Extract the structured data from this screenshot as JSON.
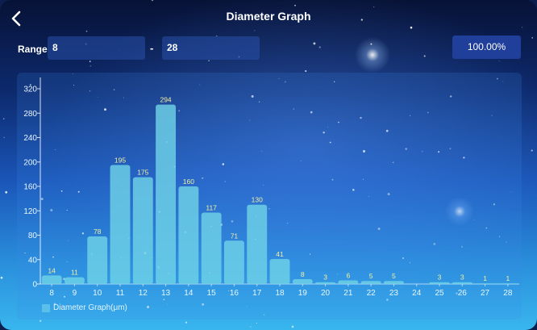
{
  "header": {
    "title": "Diameter Graph",
    "back_icon": "chevron-left-icon"
  },
  "range": {
    "label": "Range",
    "from_value": "8",
    "separator": "-",
    "to_value": "28"
  },
  "percent": "100.00%",
  "colors": {
    "bar_fill": "#6fd2e6",
    "bar_label": "#f4f0a0",
    "axis_text": "#e8f6ff"
  },
  "chart_data": {
    "type": "bar",
    "categories": [
      "8",
      "9",
      "10",
      "11",
      "12",
      "13",
      "14",
      "15",
      "16",
      "17",
      "18",
      "19",
      "20",
      "21",
      "22",
      "23",
      "24",
      "25",
      "26",
      "27",
      "28"
    ],
    "series": [
      {
        "name": "Diameter Graph(μm)",
        "values": [
          14,
          11,
          78,
          195,
          175,
          294,
          160,
          117,
          71,
          130,
          41,
          8,
          3,
          6,
          5,
          5,
          0,
          3,
          3,
          1,
          1
        ]
      }
    ],
    "data_labels": [
      "14",
      "11",
      "78",
      "195",
      "175",
      "294",
      "160",
      "117",
      "71",
      "130",
      "41",
      "8",
      "3",
      "6",
      "5",
      "5",
      "",
      "3",
      "3",
      "1",
      "1"
    ],
    "ylim": [
      0,
      320
    ],
    "yticks": [
      0,
      40,
      80,
      120,
      160,
      200,
      240,
      280,
      320
    ],
    "xlabel": "",
    "ylabel": "",
    "grid": false,
    "legend": "bottom-left"
  }
}
